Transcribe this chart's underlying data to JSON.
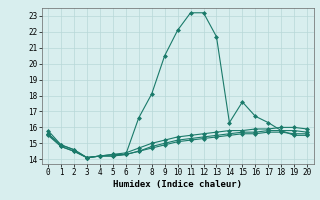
{
  "xlabel": "Humidex (Indice chaleur)",
  "ylabel": "",
  "xlim": [
    -0.5,
    20.5
  ],
  "ylim": [
    13.7,
    23.5
  ],
  "yticks": [
    14,
    15,
    16,
    17,
    18,
    19,
    20,
    21,
    22,
    23
  ],
  "xticks": [
    0,
    1,
    2,
    3,
    4,
    5,
    6,
    7,
    8,
    9,
    10,
    11,
    12,
    13,
    14,
    15,
    16,
    17,
    18,
    19,
    20
  ],
  "bg_color": "#d8eeee",
  "grid_color": "#b8d8d8",
  "line_color": "#1a7a6a",
  "lines": [
    {
      "x": [
        0,
        1,
        2,
        3,
        4,
        5,
        6,
        7,
        8,
        9,
        10,
        11,
        12,
        13,
        14,
        15,
        16,
        17,
        18,
        19,
        20
      ],
      "y": [
        15.8,
        14.9,
        14.6,
        14.1,
        14.2,
        14.3,
        14.3,
        16.6,
        18.1,
        20.5,
        22.1,
        23.2,
        23.2,
        21.7,
        16.3,
        17.6,
        16.7,
        16.3,
        15.8,
        15.5,
        15.5
      ]
    },
    {
      "x": [
        0,
        1,
        2,
        3,
        4,
        5,
        6,
        7,
        8,
        9,
        10,
        11,
        12,
        13,
        14,
        15,
        16,
        17,
        18,
        19,
        20
      ],
      "y": [
        15.6,
        14.9,
        14.6,
        14.1,
        14.2,
        14.3,
        14.4,
        14.7,
        15.0,
        15.2,
        15.4,
        15.5,
        15.6,
        15.7,
        15.8,
        15.8,
        15.9,
        15.9,
        16.0,
        16.0,
        15.9
      ]
    },
    {
      "x": [
        0,
        1,
        2,
        3,
        4,
        5,
        6,
        7,
        8,
        9,
        10,
        11,
        12,
        13,
        14,
        15,
        16,
        17,
        18,
        19,
        20
      ],
      "y": [
        15.6,
        14.8,
        14.5,
        14.1,
        14.2,
        14.2,
        14.3,
        14.5,
        14.8,
        15.0,
        15.2,
        15.3,
        15.4,
        15.5,
        15.6,
        15.7,
        15.7,
        15.8,
        15.8,
        15.8,
        15.7
      ]
    },
    {
      "x": [
        0,
        1,
        2,
        3,
        4,
        5,
        6,
        7,
        8,
        9,
        10,
        11,
        12,
        13,
        14,
        15,
        16,
        17,
        18,
        19,
        20
      ],
      "y": [
        15.5,
        14.8,
        14.5,
        14.1,
        14.2,
        14.2,
        14.3,
        14.5,
        14.7,
        14.9,
        15.1,
        15.2,
        15.3,
        15.4,
        15.5,
        15.6,
        15.6,
        15.7,
        15.7,
        15.6,
        15.6
      ]
    }
  ],
  "marker": "D",
  "markersize": 2.0,
  "linewidth": 0.8,
  "fontsize_ticks": 5.5,
  "fontsize_xlabel": 6.5
}
